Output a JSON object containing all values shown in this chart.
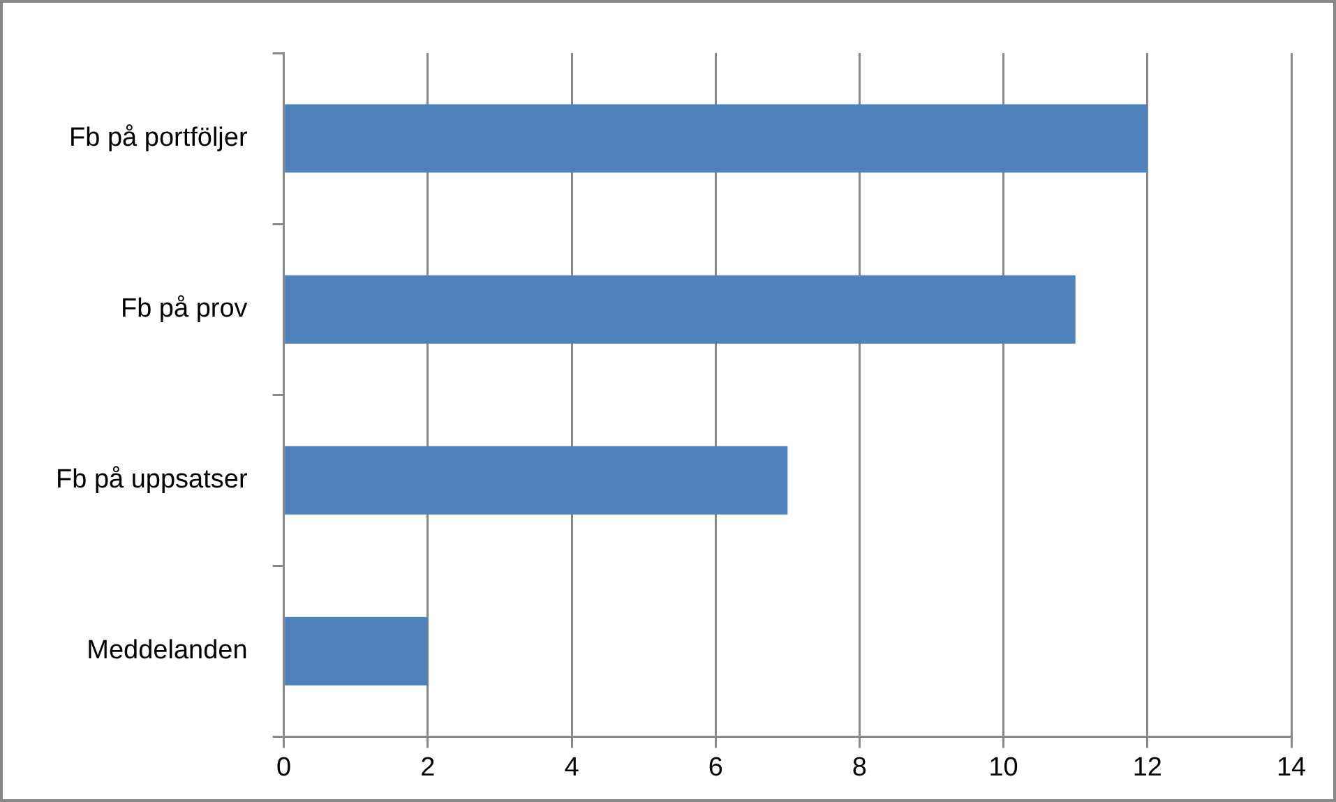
{
  "chart_data": {
    "type": "bar",
    "orientation": "horizontal",
    "categories": [
      "Fb på portföljer",
      "Fb på prov",
      "Fb på uppsatser",
      "Meddelanden"
    ],
    "values": [
      12,
      11,
      7,
      2
    ],
    "color": "#4f81bd",
    "xlim": [
      0,
      14
    ],
    "xticks": [
      0,
      2,
      4,
      6,
      8,
      10,
      12,
      14
    ],
    "grid": "x"
  }
}
